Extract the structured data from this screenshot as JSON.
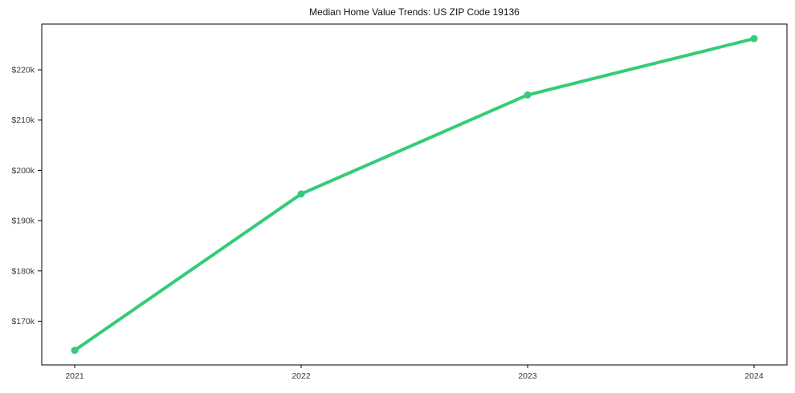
{
  "chart_data": {
    "type": "line",
    "title": "Median Home Value Trends: US ZIP Code 19136",
    "categories": [
      "2021",
      "2022",
      "2023",
      "2024"
    ],
    "series": [
      {
        "name": "Median Home Value",
        "values": [
          164200,
          195300,
          215000,
          226200
        ]
      }
    ],
    "xlabel": "",
    "ylabel": "",
    "ylim": [
      161300,
      229100
    ],
    "yticks": {
      "values": [
        170000,
        180000,
        190000,
        200000,
        210000,
        220000
      ],
      "labels": [
        "$170k",
        "$180k",
        "$190k",
        "$200k",
        "$210k",
        "$220k"
      ]
    },
    "grid": false,
    "legend": "none",
    "colors": {
      "line": "#35cb78",
      "marker": "#35cb78",
      "axis": "#000000",
      "tick_label": "#3a3a3a",
      "title": "#111111",
      "background": "#ffffff"
    },
    "style": {
      "line_width": 4,
      "marker_radius": 4.5
    }
  }
}
